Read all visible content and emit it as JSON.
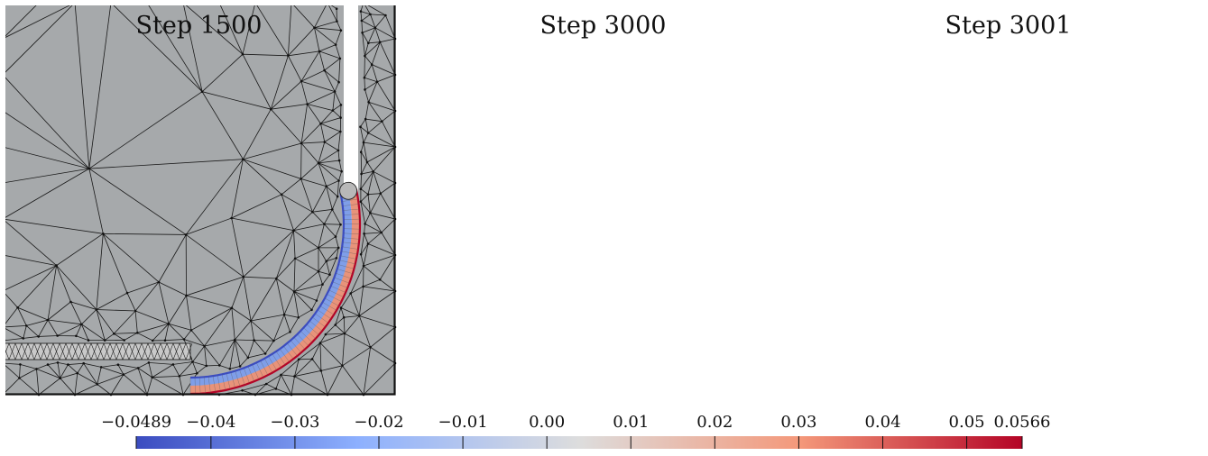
{
  "panels": [
    {
      "title": "Step 1500",
      "domain": "full",
      "ribbon_colored": true,
      "horizontal_part": "fine"
    },
    {
      "title": "Step 3000",
      "domain": "full",
      "ribbon_colored": true,
      "horizontal_part": "coarse"
    },
    {
      "title": "Step 3001",
      "domain": "corner",
      "ribbon_colored": true,
      "horizontal_part": "coarse"
    }
  ],
  "colorbar": {
    "min": -0.0489,
    "max": 0.0566,
    "tick_labels": [
      "−0.0489",
      "−0.04",
      "−0.03",
      "−0.02",
      "−0.01",
      "0.00",
      "0.01",
      "0.02",
      "0.03",
      "0.04",
      "0.05",
      "0.0566"
    ],
    "tick_values": [
      -0.0489,
      -0.04,
      -0.03,
      -0.02,
      -0.01,
      0.0,
      0.01,
      0.02,
      0.03,
      0.04,
      0.05,
      0.0566
    ],
    "colormap": [
      "#3b4cc0",
      "#8db0fe",
      "#dddddd",
      "#f4987a",
      "#b40426"
    ]
  },
  "colors": {
    "mesh_fill": "#a6a9ab",
    "mesh_line": "#1a1a1a",
    "frame": "#111111"
  }
}
